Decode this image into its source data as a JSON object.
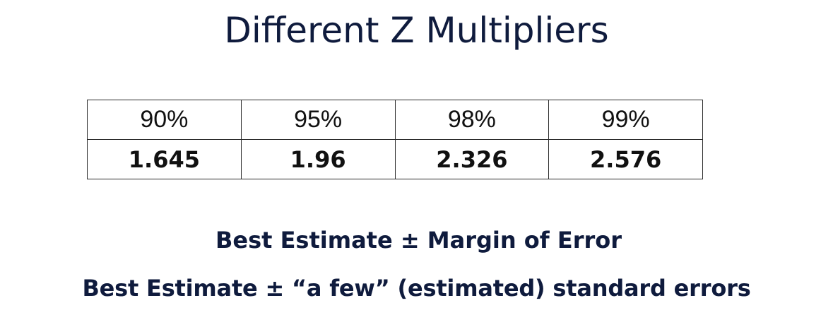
{
  "slide": {
    "title": "Different Z Multipliers",
    "table": {
      "confidence_levels": [
        "90%",
        "95%",
        "98%",
        "99%"
      ],
      "z_multipliers": [
        "1.645",
        "1.96",
        "2.326",
        "2.576"
      ]
    },
    "formula_line_1": "Best Estimate ± Margin of Error",
    "formula_line_2": "Best Estimate ± “a few” (estimated) standard errors"
  },
  "colors": {
    "title_text": "#0f1b3d",
    "table_text": "#111111",
    "table_border": "#2a2a2a",
    "background": "#ffffff"
  }
}
